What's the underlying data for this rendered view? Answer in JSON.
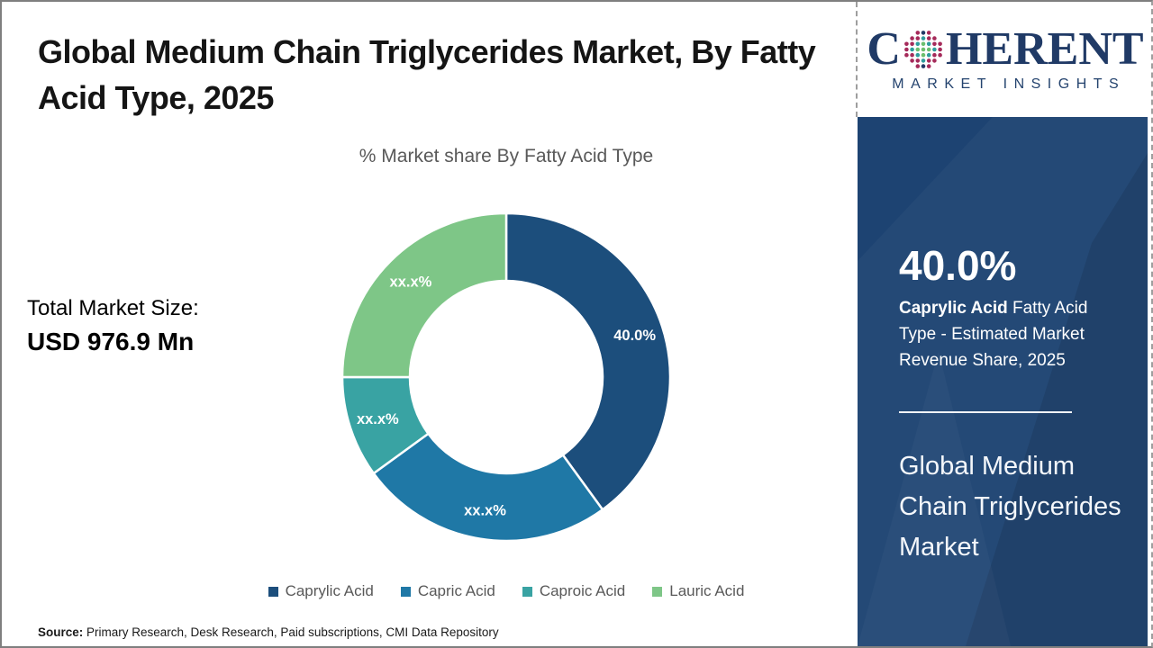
{
  "page": {
    "title": "Global Medium Chain Triglycerides Market, By Fatty Acid Type, 2025",
    "source_label": "Source:",
    "source_text": " Primary Research, Desk Research, Paid subscriptions, CMI Data Repository"
  },
  "logo": {
    "prefix": "C",
    "suffix": "HERENT",
    "subtitle": "MARKET INSIGHTS",
    "navy": "#203a66",
    "globe_colors": {
      "inner": "#6cbf6e",
      "mid": "#2f9d9d",
      "outer": "#a52a5a",
      "pole": "#203a66"
    }
  },
  "total_market": {
    "label": "Total Market Size:",
    "value": "USD 976.9 Mn"
  },
  "chart_data": {
    "type": "pie",
    "donut": true,
    "title": "% Market share By Fatty Acid Type",
    "categories": [
      "Caprylic Acid",
      "Capric Acid",
      "Caproic Acid",
      "Lauric Acid"
    ],
    "values": [
      40.0,
      25.0,
      10.0,
      25.0
    ],
    "slice_labels": [
      "40.0%",
      "xx.x%",
      "xx.x%",
      "xx.x%"
    ],
    "colors": [
      "#1c4e7c",
      "#1f78a6",
      "#39a3a3",
      "#7ec687"
    ],
    "start_angle_deg": 0,
    "direction": "clockwise",
    "outer_radius": 182,
    "inner_radius": 107,
    "label_radius": 150,
    "separator_color": "#ffffff",
    "legend_position": "bottom"
  },
  "sidebar": {
    "bg_color": "#1d4372",
    "stat_value": "40.0%",
    "stat_bold": "Caprylic Acid",
    "stat_rest": " Fatty Acid Type - Estimated Market Revenue Share, 2025",
    "heading": "Global Medium Chain Triglycerides Market"
  }
}
